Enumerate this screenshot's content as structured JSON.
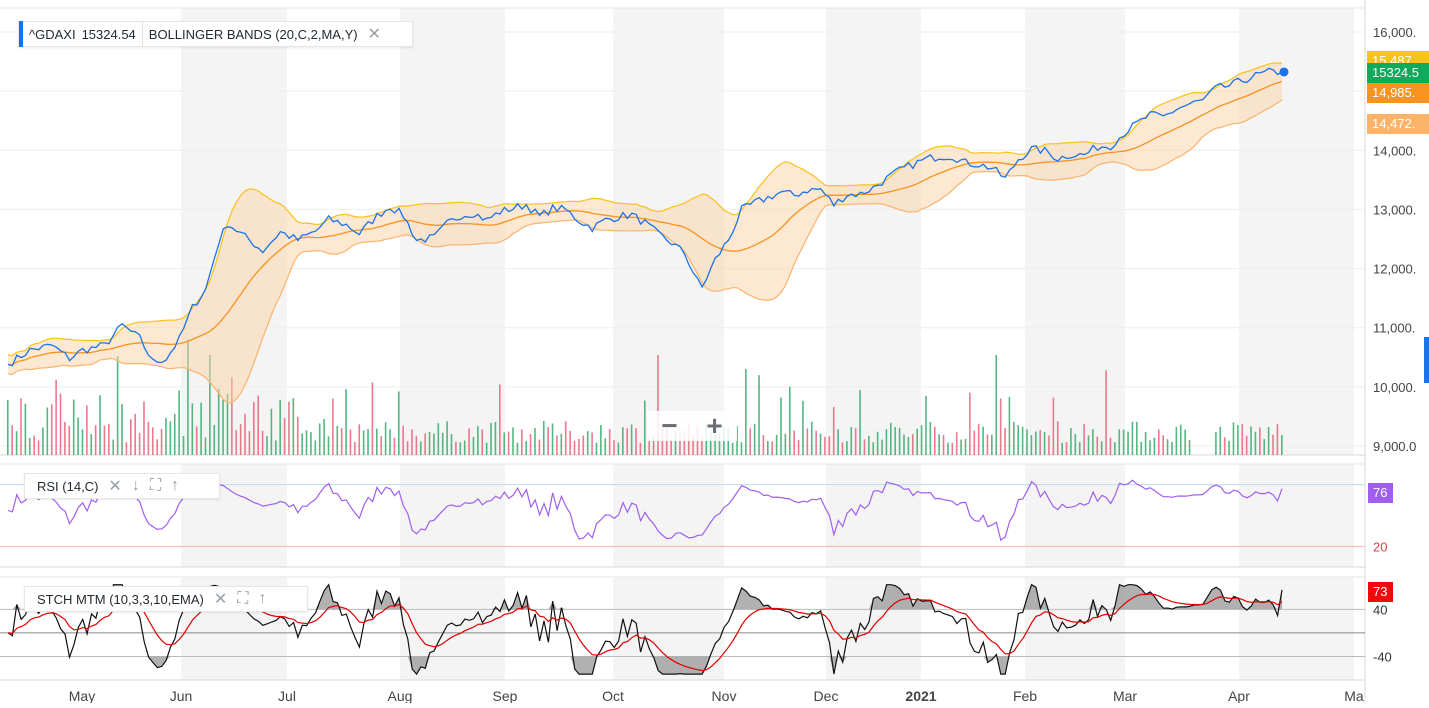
{
  "ticker": {
    "symbol": "^GDAXI",
    "last": "15324.54",
    "accent": "#1a73e8"
  },
  "main_legend": {
    "indicator": "BOLLINGER BANDS (20,C,2,MA,Y)"
  },
  "rsi_legend": {
    "label": "RSI (14,C)"
  },
  "stoch_legend": {
    "label": "STCH MTM (10,3,3,10,EMA)"
  },
  "price_tags": {
    "upper": {
      "text": "15,487",
      "color": "#f9c21a"
    },
    "last": {
      "text": "15324.5",
      "color": "#0faa5c"
    },
    "middle": {
      "text": "14,985.",
      "color": "#f7931e"
    },
    "lower": {
      "text": "14,472.",
      "color": "#fbb36a"
    },
    "rsi": {
      "text": "76",
      "color": "#a05ff0"
    },
    "stoch": {
      "text": "73",
      "color": "#f00a0a"
    }
  },
  "zoom": {
    "minus": "−",
    "plus": "+"
  },
  "chart_data": [
    {
      "type": "line",
      "title": "^GDAXI 15324.54",
      "indicator": "BOLLINGER BANDS (20,C,2,MA,Y)",
      "y_ticks": [
        "16,000.",
        "15,000.",
        "14,000.",
        "13,000.",
        "12,000.",
        "11,000.",
        "10,000.",
        "9,000.0"
      ],
      "ylim": [
        8950,
        16150
      ],
      "x_labels": [
        "May",
        "Jun",
        "Jul",
        "Aug",
        "Sep",
        "Oct",
        "Nov",
        "Dec",
        "2021",
        "Feb",
        "Mar",
        "Apr",
        "Ma"
      ],
      "x_range_months": [
        "2020-04",
        "2021-05"
      ],
      "close_anchors": [
        [
          0,
          10380
        ],
        [
          5,
          10620
        ],
        [
          10,
          10700
        ],
        [
          14,
          10480
        ],
        [
          17,
          10620
        ],
        [
          22,
          10700
        ],
        [
          26,
          11040
        ],
        [
          30,
          10820
        ],
        [
          33,
          10420
        ],
        [
          36,
          10480
        ],
        [
          39,
          10800
        ],
        [
          42,
          11340
        ],
        [
          45,
          11650
        ],
        [
          48,
          12460
        ],
        [
          50,
          12770
        ],
        [
          53,
          12590
        ],
        [
          56,
          12420
        ],
        [
          58,
          12300
        ],
        [
          62,
          12620
        ],
        [
          66,
          12480
        ],
        [
          70,
          12630
        ],
        [
          73,
          12830
        ],
        [
          77,
          12740
        ],
        [
          80,
          12590
        ],
        [
          84,
          12890
        ],
        [
          87,
          13050
        ],
        [
          90,
          12900
        ],
        [
          93,
          12480
        ],
        [
          97,
          12520
        ],
        [
          100,
          12760
        ],
        [
          103,
          12900
        ],
        [
          106,
          12940
        ],
        [
          109,
          12820
        ],
        [
          112,
          12960
        ],
        [
          115,
          13020
        ],
        [
          118,
          13080
        ],
        [
          121,
          12880
        ],
        [
          124,
          13020
        ],
        [
          127,
          12990
        ],
        [
          130,
          12810
        ],
        [
          133,
          12690
        ],
        [
          136,
          12820
        ],
        [
          139,
          12880
        ],
        [
          142,
          12910
        ],
        [
          145,
          12770
        ],
        [
          148,
          12580
        ],
        [
          151,
          12440
        ],
        [
          154,
          12260
        ],
        [
          157,
          11780
        ],
        [
          158,
          11680
        ],
        [
          161,
          12150
        ],
        [
          164,
          12490
        ],
        [
          167,
          12990
        ],
        [
          170,
          13110
        ],
        [
          173,
          13200
        ],
        [
          176,
          13290
        ],
        [
          179,
          13240
        ],
        [
          182,
          13330
        ],
        [
          185,
          13340
        ],
        [
          188,
          13080
        ],
        [
          191,
          13250
        ],
        [
          194,
          13260
        ],
        [
          197,
          13370
        ],
        [
          200,
          13520
        ],
        [
          203,
          13660
        ],
        [
          206,
          13760
        ],
        [
          209,
          13850
        ],
        [
          212,
          13900
        ],
        [
          215,
          13900
        ],
        [
          218,
          13790
        ],
        [
          221,
          13760
        ],
        [
          224,
          13700
        ],
        [
          227,
          13520
        ],
        [
          230,
          13850
        ],
        [
          233,
          14020
        ],
        [
          236,
          13990
        ],
        [
          239,
          13860
        ],
        [
          242,
          13930
        ],
        [
          245,
          13920
        ],
        [
          248,
          14060
        ],
        [
          251,
          14080
        ],
        [
          254,
          14290
        ],
        [
          257,
          14450
        ],
        [
          260,
          14600
        ],
        [
          263,
          14560
        ],
        [
          266,
          14700
        ],
        [
          269,
          14780
        ],
        [
          272,
          14840
        ],
        [
          275,
          15050
        ],
        [
          278,
          15090
        ],
        [
          281,
          15180
        ],
        [
          284,
          15260
        ],
        [
          287,
          15320
        ],
        [
          290,
          15324
        ]
      ],
      "bollinger": {
        "period": 20,
        "std_dev": 2,
        "upper_last": 15487,
        "middle_last": 14985,
        "lower_last": 14472
      },
      "series": [
        {
          "name": "^GDAXI",
          "color": "#1a73e8"
        },
        {
          "name": "BOLLINGER BANDS (20,C,2,MA,Y)",
          "color": "#f7931e"
        }
      ]
    },
    {
      "type": "line",
      "title": "RSI (14,C)",
      "ylim": [
        0,
        100
      ],
      "levels": [
        80,
        20
      ],
      "level_labels": [
        "20"
      ],
      "last": 76,
      "series": [
        {
          "name": "RSI (14,C)",
          "color": "#a05ff0"
        }
      ]
    },
    {
      "type": "line",
      "title": "STCH MTM (10,3,3,10,EMA)",
      "ylim": [
        -80,
        95
      ],
      "levels": [
        40,
        0,
        -40
      ],
      "level_labels": [
        "40",
        "-40"
      ],
      "last": 73,
      "series": [
        {
          "name": "STCH MTM",
          "color": "#111111"
        },
        {
          "name": "EMA",
          "color": "#e00000"
        }
      ]
    }
  ]
}
